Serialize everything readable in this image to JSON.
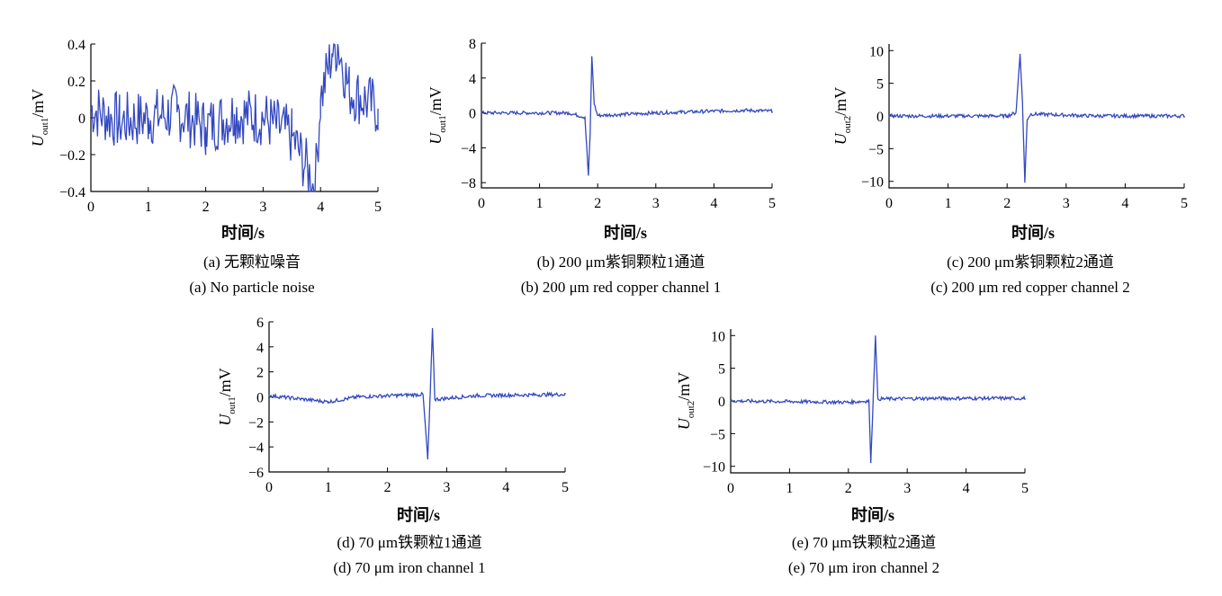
{
  "colors": {
    "line": "#3348c0",
    "axis": "#000000",
    "background": "#ffffff"
  },
  "chart_data": [
    {
      "type": "line",
      "xlabel": "时间/s",
      "ylabel": {
        "base": "U",
        "sub": "out1",
        "unit": "/mV"
      },
      "xlim": [
        0,
        5
      ],
      "ylim": [
        -0.4,
        0.4
      ],
      "xticks": [
        "0",
        "1",
        "2",
        "3",
        "4",
        "5"
      ],
      "yticks": [
        "0.4",
        "0.2",
        "0",
        "−0.2",
        "−0.4"
      ],
      "caption_zh": "(a)  无颗粒噪音",
      "caption_en": "(a) No particle noise",
      "series": [
        {
          "x": [
            0,
            0.5,
            1,
            1.5,
            2,
            2.5,
            3,
            3.5,
            3.8,
            3.9,
            4.0,
            4.2,
            4.3,
            4.5,
            5
          ],
          "y": [
            0.05,
            -0.02,
            0.0,
            0.03,
            -0.05,
            0.02,
            0.0,
            -0.1,
            -0.3,
            -0.4,
            0.1,
            0.35,
            0.4,
            0.15,
            0.05
          ]
        }
      ]
    },
    {
      "type": "line",
      "xlabel": "时间/s",
      "ylabel": {
        "base": "U",
        "sub": "out1",
        "unit": "/mV"
      },
      "xlim": [
        0,
        5
      ],
      "ylim": [
        -8.6,
        8
      ],
      "xticks": [
        "0",
        "1",
        "2",
        "3",
        "4",
        "5"
      ],
      "yticks": [
        "8",
        "4",
        "0",
        "−4",
        "−8"
      ],
      "caption_zh": "(b) 200 μm紫铜颗粒1通道",
      "caption_en": "(b) 200 μm red copper channel 1",
      "series": [
        {
          "x": [
            0,
            1.5,
            1.78,
            1.84,
            1.87,
            1.9,
            1.94,
            2.0,
            3,
            4.5,
            5
          ],
          "y": [
            0,
            0,
            -0.5,
            -7.2,
            -2.5,
            6.5,
            1.0,
            -0.3,
            0,
            0.3,
            0.2
          ]
        }
      ]
    },
    {
      "type": "line",
      "xlabel": "时间/s",
      "ylabel": {
        "base": "U",
        "sub": "out2",
        "unit": "/mV"
      },
      "xlim": [
        0,
        5
      ],
      "ylim": [
        -11,
        11
      ],
      "xticks": [
        "0",
        "1",
        "2",
        "3",
        "4",
        "5"
      ],
      "yticks": [
        "10",
        "5",
        "0",
        "−5",
        "−10"
      ],
      "caption_zh": "(c)    200 μm紫铜颗粒2通道",
      "caption_en": "(c) 200 μm red copper channel 2",
      "series": [
        {
          "x": [
            0,
            2.0,
            2.15,
            2.22,
            2.26,
            2.3,
            2.34,
            2.4,
            3.5,
            5
          ],
          "y": [
            0,
            0,
            0.5,
            9.5,
            2.0,
            -10.2,
            -0.5,
            0.3,
            0,
            0
          ]
        }
      ]
    },
    {
      "type": "line",
      "xlabel": "时间/s",
      "ylabel": {
        "base": "U",
        "sub": "out1",
        "unit": "/mV"
      },
      "xlim": [
        0,
        5
      ],
      "ylim": [
        -6,
        6
      ],
      "xticks": [
        "0",
        "1",
        "2",
        "3",
        "4",
        "5"
      ],
      "yticks": [
        "6",
        "4",
        "2",
        "0",
        "−2",
        "−4",
        "−6"
      ],
      "caption_zh": "(d) 70 μm铁颗粒1通道",
      "caption_en": "(d) 70 μm iron channel 1",
      "series": [
        {
          "x": [
            0,
            1,
            1.5,
            2.6,
            2.68,
            2.72,
            2.76,
            2.8,
            3.5,
            5
          ],
          "y": [
            0.1,
            -0.4,
            0,
            0.2,
            -5.0,
            0,
            5.5,
            -0.2,
            0.1,
            0.2
          ]
        }
      ]
    },
    {
      "type": "line",
      "xlabel": "时间/s",
      "ylabel": {
        "base": "U",
        "sub": "out2",
        "unit": "/mV"
      },
      "xlim": [
        0,
        5
      ],
      "ylim": [
        -11,
        11
      ],
      "xticks": [
        "0",
        "1",
        "2",
        "3",
        "4",
        "5"
      ],
      "yticks": [
        "10",
        "5",
        "0",
        "−5",
        "−10"
      ],
      "caption_zh": "(e) 70 μm铁颗粒2通道",
      "caption_en": "(e) 70 μm iron channel 2",
      "series": [
        {
          "x": [
            0,
            2,
            2.35,
            2.38,
            2.42,
            2.46,
            2.5,
            3.5,
            5
          ],
          "y": [
            0,
            -0.2,
            0,
            -9.5,
            0,
            10.0,
            0.3,
            0.4,
            0.4
          ]
        }
      ]
    }
  ]
}
